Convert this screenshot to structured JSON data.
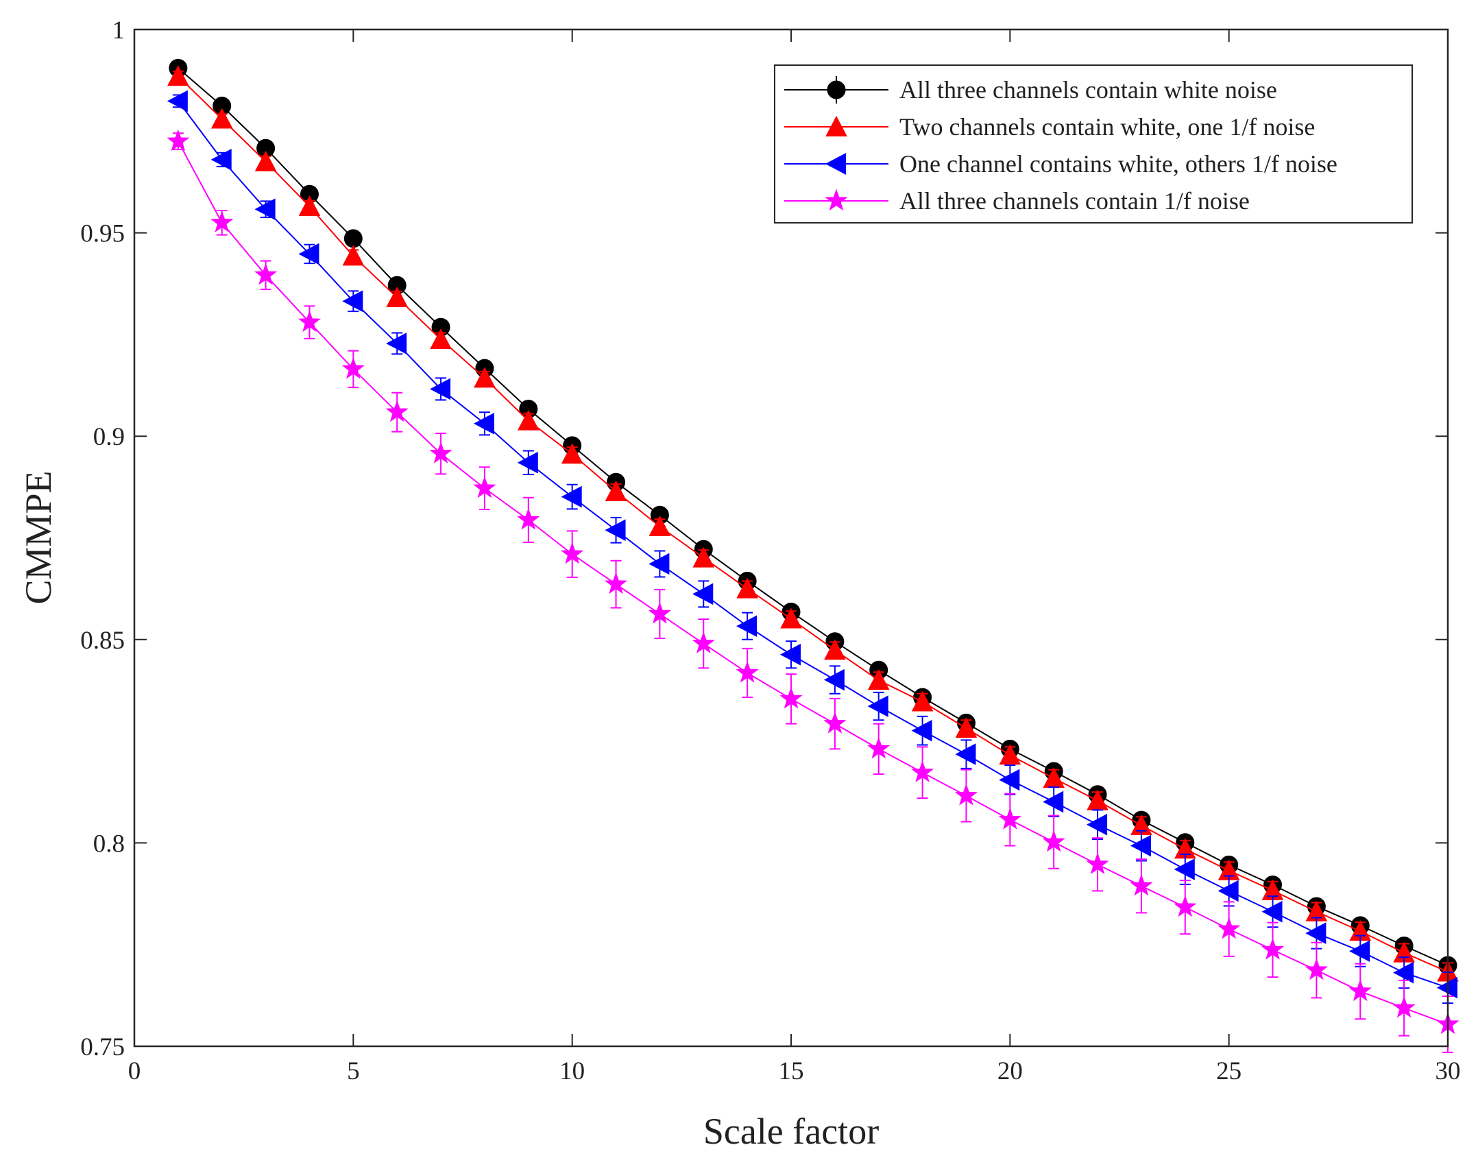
{
  "chart_data": {
    "type": "line",
    "title": "",
    "xlabel": "Scale factor",
    "ylabel": "CMMPE",
    "xlim": [
      0,
      30
    ],
    "ylim": [
      0.75,
      1
    ],
    "xticks": [
      0,
      5,
      10,
      15,
      20,
      25,
      30
    ],
    "xtick_labels": [
      "0",
      "5",
      "10",
      "15",
      "20",
      "25",
      "30"
    ],
    "yticks": [
      0.75,
      0.8,
      0.85,
      0.9,
      0.95,
      1
    ],
    "ytick_labels": [
      "0.75",
      "0.8",
      "0.85",
      "0.9",
      "0.95",
      "1"
    ],
    "grid": false,
    "legend_position": "top-right",
    "x": [
      1,
      2,
      3,
      4,
      5,
      6,
      7,
      8,
      9,
      10,
      11,
      12,
      13,
      14,
      15,
      16,
      17,
      18,
      19,
      20,
      21,
      22,
      23,
      24,
      25,
      26,
      27,
      28,
      29,
      30
    ],
    "series": [
      {
        "name": "All three channels contain white noise",
        "color": "#000000",
        "marker": "circle",
        "values": [
          0.9905,
          0.9812,
          0.9708,
          0.9595,
          0.9486,
          0.9371,
          0.9268,
          0.9167,
          0.9067,
          0.8977,
          0.8887,
          0.8806,
          0.8722,
          0.8644,
          0.8568,
          0.8495,
          0.8425,
          0.8358,
          0.8295,
          0.8231,
          0.8176,
          0.8119,
          0.8056,
          0.8001,
          0.7946,
          0.7897,
          0.7844,
          0.7797,
          0.7747,
          0.7699
        ],
        "errors": [
          0.001,
          0.001,
          0.001,
          0.0012,
          0.0012,
          0.0012,
          0.0013,
          0.0013,
          0.0013,
          0.0014,
          0.0014,
          0.0014,
          0.0014,
          0.0014,
          0.0014,
          0.0015,
          0.0015,
          0.0015,
          0.0015,
          0.0015,
          0.0015,
          0.0016,
          0.0016,
          0.0016,
          0.0016,
          0.0016,
          0.0016,
          0.0016,
          0.0016,
          0.0016
        ]
      },
      {
        "name": "Two channels contain white, one 1/f noise",
        "color": "#ff0000",
        "marker": "triangle-up",
        "values": [
          0.9885,
          0.978,
          0.9675,
          0.9565,
          0.9443,
          0.9341,
          0.9238,
          0.9143,
          0.9038,
          0.8956,
          0.8864,
          0.8778,
          0.8701,
          0.8625,
          0.8551,
          0.8474,
          0.84,
          0.8347,
          0.8282,
          0.8216,
          0.8159,
          0.8104,
          0.8043,
          0.7985,
          0.7932,
          0.7883,
          0.7831,
          0.7783,
          0.773,
          0.7683
        ],
        "errors": [
          0.0012,
          0.0012,
          0.0013,
          0.0014,
          0.0015,
          0.0015,
          0.0016,
          0.0016,
          0.0017,
          0.0017,
          0.0018,
          0.0018,
          0.0019,
          0.0019,
          0.0019,
          0.002,
          0.002,
          0.002,
          0.002,
          0.002,
          0.0021,
          0.0021,
          0.0021,
          0.0021,
          0.0021,
          0.0022,
          0.0022,
          0.0022,
          0.0022,
          0.0022
        ]
      },
      {
        "name": "One channel contains white, others 1/f noise",
        "color": "#0000ff",
        "marker": "triangle-left",
        "values": [
          0.9824,
          0.968,
          0.9558,
          0.9448,
          0.9332,
          0.9228,
          0.9116,
          0.9031,
          0.8935,
          0.8851,
          0.8769,
          0.8686,
          0.8612,
          0.8533,
          0.8463,
          0.8401,
          0.8336,
          0.8276,
          0.8218,
          0.8155,
          0.8101,
          0.8045,
          0.7993,
          0.7935,
          0.7882,
          0.7831,
          0.7778,
          0.7734,
          0.7681,
          0.7644
        ],
        "errors": [
          0.0015,
          0.0017,
          0.002,
          0.0023,
          0.0025,
          0.0026,
          0.0027,
          0.0028,
          0.0029,
          0.003,
          0.0031,
          0.0032,
          0.0032,
          0.0033,
          0.0033,
          0.0034,
          0.0034,
          0.0035,
          0.0035,
          0.0036,
          0.0036,
          0.0036,
          0.0037,
          0.0037,
          0.0037,
          0.0038,
          0.0038,
          0.0038,
          0.0038,
          0.0038
        ]
      },
      {
        "name": "All three channels contain 1/f noise",
        "color": "#ff00ff",
        "marker": "star",
        "values": [
          0.9725,
          0.9525,
          0.9396,
          0.928,
          0.9165,
          0.9059,
          0.8957,
          0.8872,
          0.8794,
          0.871,
          0.8636,
          0.8563,
          0.849,
          0.8418,
          0.8354,
          0.8293,
          0.8231,
          0.8173,
          0.8116,
          0.8057,
          0.8002,
          0.7947,
          0.7894,
          0.7842,
          0.7788,
          0.7737,
          0.7687,
          0.7635,
          0.7594,
          0.7554
        ],
        "errors": [
          0.002,
          0.003,
          0.0035,
          0.004,
          0.0045,
          0.0048,
          0.005,
          0.0052,
          0.0055,
          0.0057,
          0.0058,
          0.006,
          0.006,
          0.006,
          0.0061,
          0.0062,
          0.0062,
          0.0063,
          0.0064,
          0.0064,
          0.0065,
          0.0065,
          0.0066,
          0.0066,
          0.0067,
          0.0067,
          0.0068,
          0.0068,
          0.0068,
          0.0069
        ]
      }
    ]
  }
}
